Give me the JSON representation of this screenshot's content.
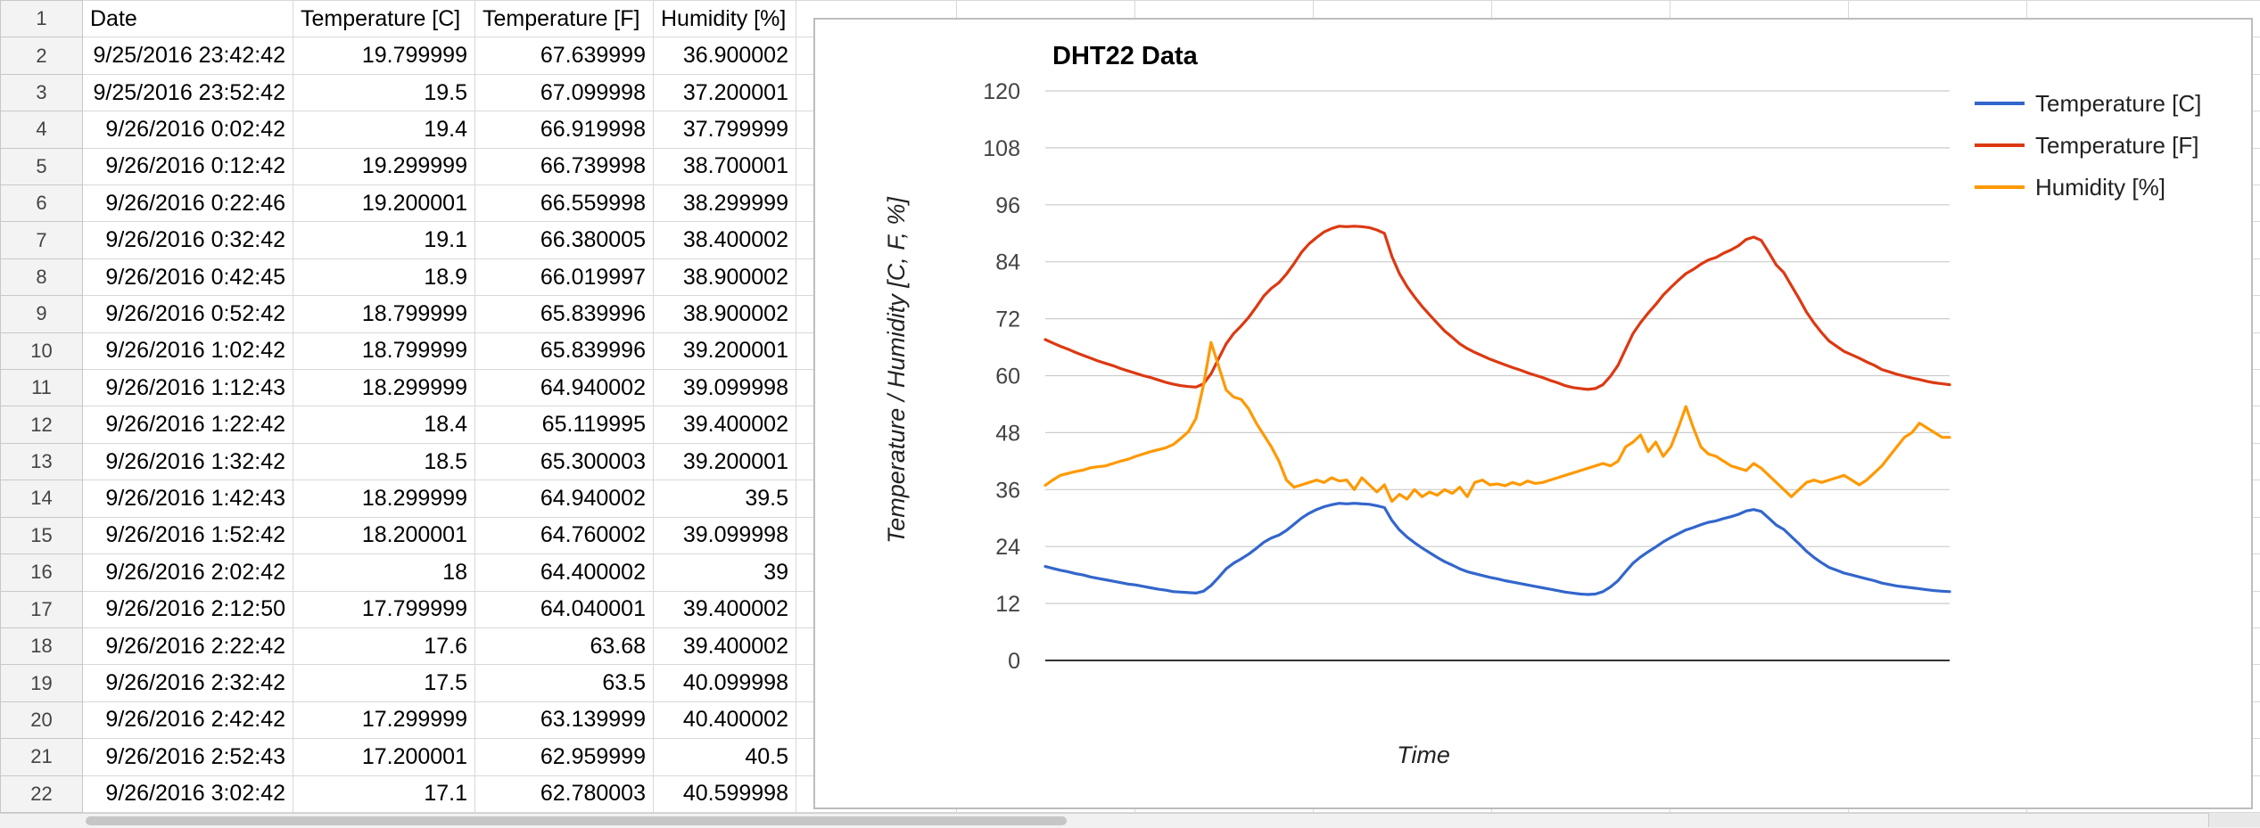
{
  "sheet": {
    "headers": [
      "Date",
      "Temperature [C]",
      "Temperature [F]",
      "Humidity [%]"
    ],
    "rows": [
      {
        "n": "2",
        "date": "9/25/2016 23:42:42",
        "c": "19.799999",
        "f": "67.639999",
        "h": "36.900002"
      },
      {
        "n": "3",
        "date": "9/25/2016 23:52:42",
        "c": "19.5",
        "f": "67.099998",
        "h": "37.200001"
      },
      {
        "n": "4",
        "date": "9/26/2016 0:02:42",
        "c": "19.4",
        "f": "66.919998",
        "h": "37.799999"
      },
      {
        "n": "5",
        "date": "9/26/2016 0:12:42",
        "c": "19.299999",
        "f": "66.739998",
        "h": "38.700001"
      },
      {
        "n": "6",
        "date": "9/26/2016 0:22:46",
        "c": "19.200001",
        "f": "66.559998",
        "h": "38.299999"
      },
      {
        "n": "7",
        "date": "9/26/2016 0:32:42",
        "c": "19.1",
        "f": "66.380005",
        "h": "38.400002"
      },
      {
        "n": "8",
        "date": "9/26/2016 0:42:45",
        "c": "18.9",
        "f": "66.019997",
        "h": "38.900002"
      },
      {
        "n": "9",
        "date": "9/26/2016 0:52:42",
        "c": "18.799999",
        "f": "65.839996",
        "h": "38.900002"
      },
      {
        "n": "10",
        "date": "9/26/2016 1:02:42",
        "c": "18.799999",
        "f": "65.839996",
        "h": "39.200001"
      },
      {
        "n": "11",
        "date": "9/26/2016 1:12:43",
        "c": "18.299999",
        "f": "64.940002",
        "h": "39.099998"
      },
      {
        "n": "12",
        "date": "9/26/2016 1:22:42",
        "c": "18.4",
        "f": "65.119995",
        "h": "39.400002"
      },
      {
        "n": "13",
        "date": "9/26/2016 1:32:42",
        "c": "18.5",
        "f": "65.300003",
        "h": "39.200001"
      },
      {
        "n": "14",
        "date": "9/26/2016 1:42:43",
        "c": "18.299999",
        "f": "64.940002",
        "h": "39.5"
      },
      {
        "n": "15",
        "date": "9/26/2016 1:52:42",
        "c": "18.200001",
        "f": "64.760002",
        "h": "39.099998"
      },
      {
        "n": "16",
        "date": "9/26/2016 2:02:42",
        "c": "18",
        "f": "64.400002",
        "h": "39"
      },
      {
        "n": "17",
        "date": "9/26/2016 2:12:50",
        "c": "17.799999",
        "f": "64.040001",
        "h": "39.400002"
      },
      {
        "n": "18",
        "date": "9/26/2016 2:22:42",
        "c": "17.6",
        "f": "63.68",
        "h": "39.400002"
      },
      {
        "n": "19",
        "date": "9/26/2016 2:32:42",
        "c": "17.5",
        "f": "63.5",
        "h": "40.099998"
      },
      {
        "n": "20",
        "date": "9/26/2016 2:42:42",
        "c": "17.299999",
        "f": "63.139999",
        "h": "40.400002"
      },
      {
        "n": "21",
        "date": "9/26/2016 2:52:43",
        "c": "17.200001",
        "f": "62.959999",
        "h": "40.5"
      },
      {
        "n": "22",
        "date": "9/26/2016 3:02:42",
        "c": "17.1",
        "f": "62.780003",
        "h": "40.599998"
      }
    ]
  },
  "chart_data": {
    "type": "line",
    "title": "DHT22 Data",
    "xlabel": "Time",
    "ylabel": "Temperature / Humidity [C, F, %]",
    "ylim": [
      0,
      120
    ],
    "yticks": [
      0,
      12,
      24,
      36,
      48,
      60,
      72,
      84,
      96,
      108,
      120
    ],
    "grid": true,
    "legend": "top-right",
    "x": [
      0,
      1,
      2,
      3,
      4,
      5,
      6,
      7,
      8,
      9,
      10,
      11,
      12,
      13,
      14,
      15,
      16,
      17,
      18,
      19,
      20,
      21,
      22,
      23,
      24,
      25,
      26,
      27,
      28,
      29,
      30,
      31,
      32,
      33,
      34,
      35,
      36,
      37,
      38,
      39,
      40,
      41,
      42,
      43,
      44,
      45,
      46,
      47,
      48,
      49,
      50,
      51,
      52,
      53,
      54,
      55,
      56,
      57,
      58,
      59,
      60,
      61,
      62,
      63,
      64,
      65,
      66,
      67,
      68,
      69,
      70,
      71,
      72,
      73,
      74,
      75,
      76,
      77,
      78,
      79,
      80,
      81,
      82,
      83,
      84,
      85,
      86,
      87,
      88,
      89,
      90,
      91,
      92,
      93,
      94,
      95,
      96,
      97,
      98,
      99,
      100,
      101,
      102,
      103,
      104,
      105,
      106,
      107,
      108,
      109,
      110,
      111,
      112,
      113,
      114,
      115,
      116,
      117,
      118,
      119,
      120
    ],
    "series": [
      {
        "name": "Temperature [C]",
        "color": "#3366cc",
        "values": [
          19.8,
          19.4,
          19.0,
          18.7,
          18.3,
          18.0,
          17.6,
          17.3,
          17.0,
          16.7,
          16.4,
          16.1,
          15.9,
          15.6,
          15.3,
          15.0,
          14.8,
          14.5,
          14.4,
          14.3,
          14.2,
          14.6,
          15.8,
          17.5,
          19.3,
          20.5,
          21.4,
          22.4,
          23.6,
          24.9,
          25.8,
          26.4,
          27.4,
          28.7,
          30.0,
          31.0,
          31.8,
          32.4,
          32.8,
          33.1,
          33.0,
          33.1,
          33.0,
          32.9,
          32.6,
          32.2,
          29.5,
          27.5,
          26.0,
          24.8,
          23.7,
          22.7,
          21.7,
          20.8,
          20.1,
          19.3,
          18.7,
          18.3,
          17.9,
          17.5,
          17.2,
          16.8,
          16.5,
          16.2,
          15.9,
          15.6,
          15.3,
          15.0,
          14.7,
          14.4,
          14.2,
          14.0,
          13.9,
          14.0,
          14.5,
          15.5,
          16.8,
          18.7,
          20.5,
          21.8,
          22.9,
          23.9,
          25.0,
          25.9,
          26.7,
          27.5,
          28.0,
          28.6,
          29.1,
          29.4,
          29.9,
          30.3,
          30.8,
          31.5,
          31.8,
          31.4,
          30.0,
          28.5,
          27.6,
          26.1,
          24.6,
          23.0,
          21.7,
          20.6,
          19.6,
          19.0,
          18.4,
          18.0,
          17.6,
          17.2,
          16.8,
          16.3,
          16.0,
          15.7,
          15.5,
          15.3,
          15.1,
          14.9,
          14.7,
          14.6,
          14.5
        ]
      },
      {
        "name": "Temperature [F]",
        "color": "#dc3912",
        "values": [
          67.6,
          66.9,
          66.2,
          65.6,
          64.9,
          64.3,
          63.7,
          63.1,
          62.6,
          62.1,
          61.5,
          61.0,
          60.5,
          60.0,
          59.6,
          59.1,
          58.6,
          58.2,
          57.9,
          57.7,
          57.6,
          58.3,
          60.4,
          63.6,
          66.7,
          68.9,
          70.5,
          72.3,
          74.5,
          76.8,
          78.4,
          79.6,
          81.4,
          83.6,
          86.0,
          87.8,
          89.1,
          90.3,
          91.0,
          91.5,
          91.4,
          91.5,
          91.4,
          91.2,
          90.7,
          90.0,
          85.1,
          81.5,
          78.8,
          76.6,
          74.6,
          72.8,
          71.1,
          69.4,
          68.1,
          66.7,
          65.7,
          64.9,
          64.2,
          63.5,
          62.9,
          62.3,
          61.7,
          61.2,
          60.6,
          60.1,
          59.6,
          59.0,
          58.5,
          57.9,
          57.5,
          57.3,
          57.1,
          57.3,
          58.1,
          59.9,
          62.2,
          65.6,
          68.9,
          71.2,
          73.2,
          75.0,
          77.0,
          78.6,
          80.1,
          81.5,
          82.4,
          83.5,
          84.4,
          84.9,
          85.8,
          86.5,
          87.4,
          88.7,
          89.2,
          88.5,
          86.0,
          83.3,
          81.7,
          79.0,
          76.3,
          73.4,
          71.1,
          69.1,
          67.3,
          66.2,
          65.1,
          64.4,
          63.7,
          62.9,
          62.2,
          61.3,
          60.8,
          60.3,
          59.9,
          59.5,
          59.2,
          58.8,
          58.5,
          58.3,
          58.1
        ]
      },
      {
        "name": "Humidity [%]",
        "color": "#ff9900",
        "values": [
          36.9,
          38.0,
          39.0,
          39.4,
          39.8,
          40.1,
          40.6,
          40.8,
          41.0,
          41.5,
          42.0,
          42.4,
          43.0,
          43.5,
          44.0,
          44.4,
          44.8,
          45.5,
          46.8,
          48.2,
          51.0,
          58.0,
          67.0,
          62.0,
          57.0,
          55.5,
          55.0,
          53.0,
          50.0,
          47.5,
          45.0,
          42.0,
          38.0,
          36.5,
          37.0,
          37.5,
          38.0,
          37.5,
          38.5,
          37.8,
          38.0,
          36.0,
          38.5,
          37.0,
          35.5,
          37.0,
          33.5,
          35.0,
          34.0,
          36.0,
          34.5,
          35.5,
          34.8,
          36.0,
          35.2,
          36.5,
          34.5,
          37.5,
          38.0,
          37.0,
          37.2,
          36.8,
          37.5,
          37.0,
          37.8,
          37.3,
          37.5,
          38.0,
          38.5,
          39.0,
          39.5,
          40.0,
          40.5,
          41.0,
          41.5,
          41.0,
          42.0,
          45.0,
          46.0,
          47.5,
          44.0,
          46.0,
          43.0,
          45.0,
          49.0,
          53.5,
          49.0,
          45.0,
          43.5,
          43.0,
          42.0,
          41.0,
          40.5,
          40.0,
          41.5,
          40.5,
          39.0,
          37.5,
          36.0,
          34.5,
          36.0,
          37.5,
          38.0,
          37.5,
          38.0,
          38.5,
          39.0,
          38.0,
          37.0,
          38.0,
          39.5,
          41.0,
          43.0,
          45.0,
          47.0,
          48.0,
          50.0,
          49.0,
          48.0,
          47.0,
          47.0
        ]
      }
    ]
  }
}
